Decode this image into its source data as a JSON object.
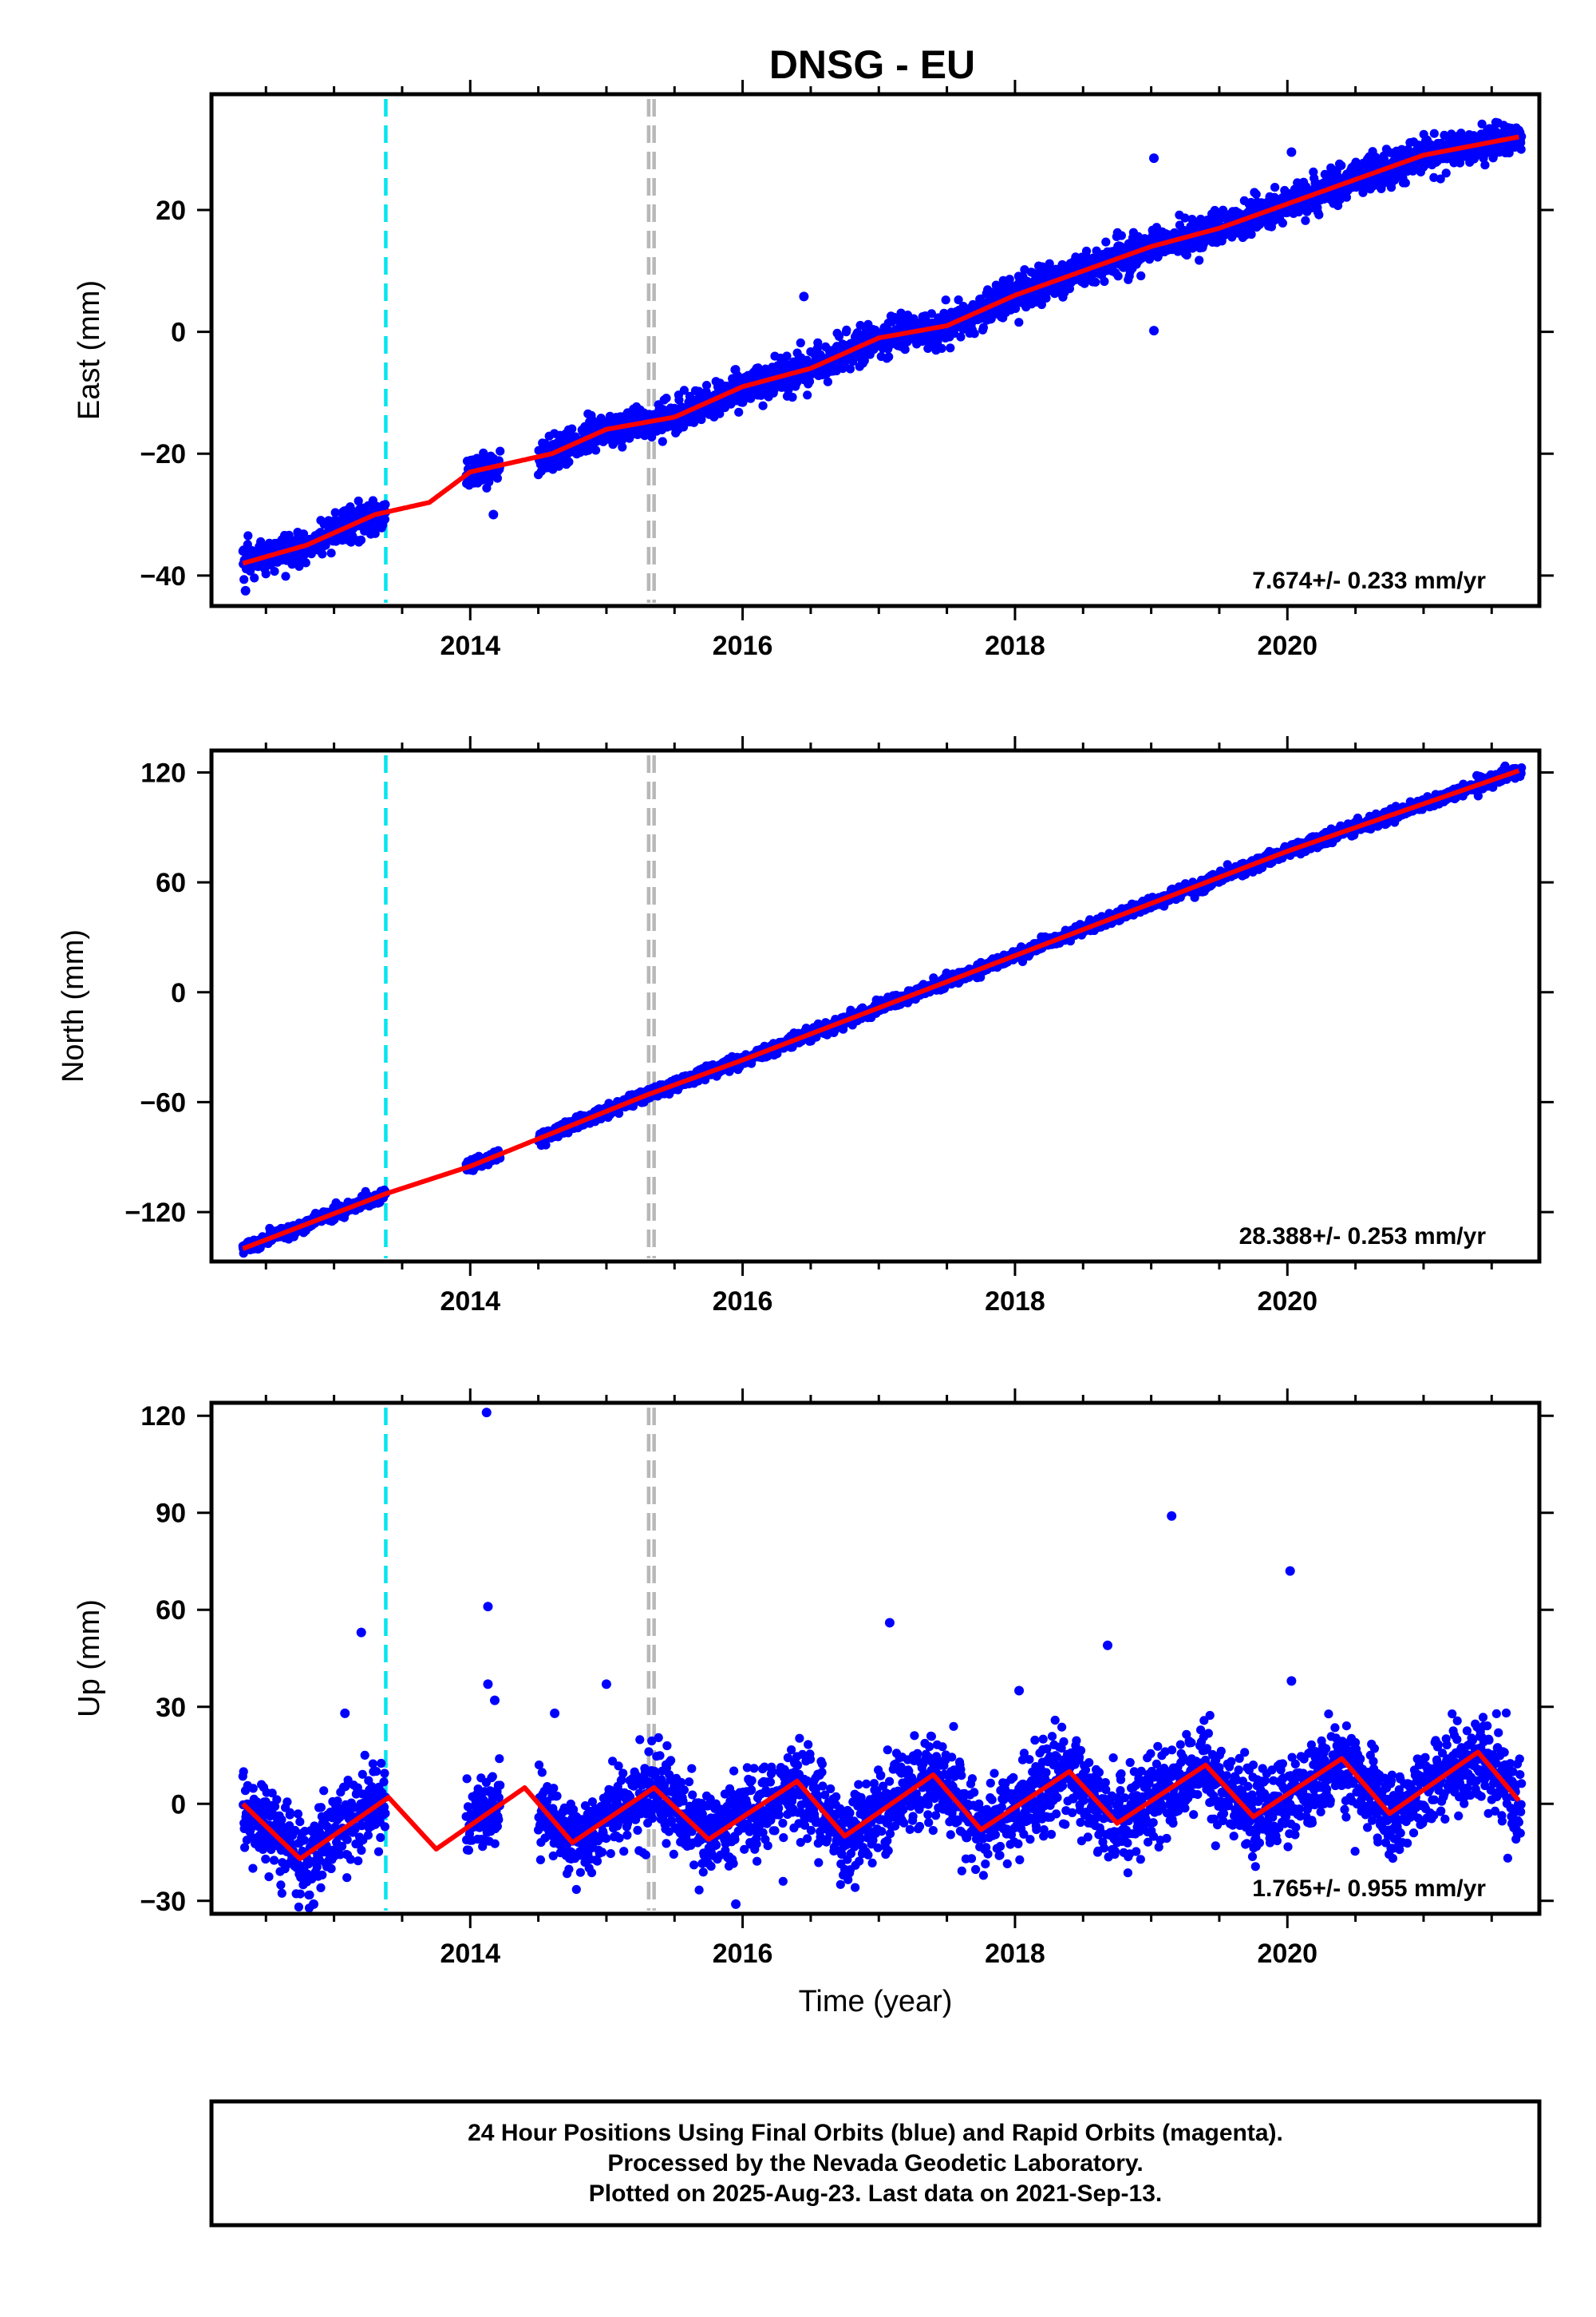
{
  "title": "DNSG - EU",
  "colors": {
    "points": "#0000ff",
    "fit": "#ff0000",
    "antenna_change": "#00e5ee",
    "other_event": "#b8b8b8",
    "frame": "#000000"
  },
  "chart_data": [
    {
      "type": "scatter",
      "component": "east",
      "ylabel": "East (mm)",
      "xlabel": "",
      "xlim": [
        2012.1,
        2021.85
      ],
      "ylim": [
        -45,
        39
      ],
      "xticks": [
        2014,
        2016,
        2018,
        2020
      ],
      "yticks": [
        -40,
        -20,
        0,
        20
      ],
      "rate_label": "7.674+/- 0.233 mm/yr",
      "event_lines": [
        {
          "x": 2013.38,
          "kind": "antenna_change"
        },
        {
          "x": 2015.31,
          "kind": "other_event"
        },
        {
          "x": 2015.35,
          "kind": "other_event"
        }
      ],
      "data_segments": [
        [
          2012.33,
          2013.38
        ],
        [
          2013.97,
          2014.22
        ],
        [
          2014.5,
          2021.72
        ]
      ],
      "trend": {
        "rate": 7.674,
        "value_at_2012_33": -38.0
      },
      "seasonal": {
        "amplitude": 1.0,
        "phase_peak": 0.3
      },
      "scatter_spread": 1.4,
      "fit": {
        "x": [
          2012.33,
          2012.8,
          2013.3,
          2013.7,
          2014.0,
          2014.6,
          2015.0,
          2015.5,
          2016.0,
          2016.5,
          2017.0,
          2017.5,
          2018.0,
          2018.5,
          2019.0,
          2019.5,
          2020.0,
          2020.5,
          2021.0,
          2021.7
        ],
        "y": [
          -38,
          -35,
          -30,
          -28,
          -23,
          -20,
          -16,
          -14,
          -9,
          -6,
          -1,
          1,
          6,
          10,
          14,
          17,
          21,
          25,
          29,
          32
        ]
      },
      "outliers": [
        {
          "x": 2019.02,
          "y": 28.5
        },
        {
          "x": 2019.02,
          "y": 0.2
        },
        {
          "x": 2020.03,
          "y": 29.5
        },
        {
          "x": 2016.45,
          "y": 5.8
        },
        {
          "x": 2014.17,
          "y": -30
        },
        {
          "x": 2012.35,
          "y": -42.5
        }
      ]
    },
    {
      "type": "scatter",
      "component": "north",
      "ylabel": "North (mm)",
      "xlabel": "",
      "xlim": [
        2012.1,
        2021.85
      ],
      "ylim": [
        -147,
        132
      ],
      "xticks": [
        2014,
        2016,
        2018,
        2020
      ],
      "yticks": [
        -120,
        -60,
        0,
        60,
        120
      ],
      "rate_label": "28.388+/- 0.253 mm/yr",
      "event_lines": [
        {
          "x": 2013.38,
          "kind": "antenna_change"
        },
        {
          "x": 2015.31,
          "kind": "other_event"
        },
        {
          "x": 2015.35,
          "kind": "other_event"
        }
      ],
      "data_segments": [
        [
          2012.33,
          2013.38
        ],
        [
          2013.97,
          2014.22
        ],
        [
          2014.5,
          2021.72
        ]
      ],
      "trend": {
        "rate": 28.388,
        "value_at_2012_33": -140.0
      },
      "seasonal": {
        "amplitude": 1.5,
        "phase_peak": 0.3
      },
      "scatter_spread": 1.6,
      "fit": {
        "x": [
          2012.33,
          2013.38,
          2014.0,
          2015.3,
          2016.0,
          2018.0,
          2020.0,
          2021.7
        ],
        "y": [
          -140,
          -110,
          -95,
          -56,
          -37,
          20,
          77,
          121
        ]
      },
      "outliers": []
    },
    {
      "type": "scatter",
      "component": "up",
      "ylabel": "Up (mm)",
      "xlabel": "Time (year)",
      "xlim": [
        2012.1,
        2021.85
      ],
      "ylim": [
        -34,
        124
      ],
      "xticks": [
        2014,
        2016,
        2018,
        2020
      ],
      "yticks": [
        -30,
        0,
        30,
        60,
        90,
        120
      ],
      "rate_label": "1.765+/- 0.955 mm/yr",
      "event_lines": [
        {
          "x": 2013.38,
          "kind": "antenna_change"
        },
        {
          "x": 2015.31,
          "kind": "other_event"
        },
        {
          "x": 2015.35,
          "kind": "other_event"
        }
      ],
      "data_segments": [
        [
          2012.33,
          2013.38
        ],
        [
          2013.97,
          2014.22
        ],
        [
          2014.5,
          2021.72
        ]
      ],
      "trend": {
        "rate": 1.765,
        "value_at_2012_33": -2.0
      },
      "seasonal": {
        "amplitude": 9.0,
        "phase_peak": 0.38
      },
      "scatter_spread": 6.5,
      "fit": {
        "x": [
          2012.33,
          2012.75,
          2013.4,
          2013.75,
          2014.4,
          2014.75,
          2015.35,
          2015.75,
          2016.4,
          2016.75,
          2017.4,
          2017.75,
          2018.4,
          2018.75,
          2019.4,
          2019.75,
          2020.4,
          2020.75,
          2021.4,
          2021.7
        ],
        "y": [
          0,
          -17,
          2,
          -14,
          5,
          -12,
          5,
          -11,
          7,
          -10,
          9,
          -8,
          10,
          -6,
          12,
          -4,
          14,
          -3,
          16,
          1
        ]
      },
      "outliers": [
        {
          "x": 2014.12,
          "y": 121
        },
        {
          "x": 2014.13,
          "y": 61
        },
        {
          "x": 2014.13,
          "y": 37
        },
        {
          "x": 2014.18,
          "y": 32
        },
        {
          "x": 2013.2,
          "y": 53
        },
        {
          "x": 2013.08,
          "y": 28
        },
        {
          "x": 2014.62,
          "y": 28
        },
        {
          "x": 2015.0,
          "y": 37
        },
        {
          "x": 2017.08,
          "y": 56
        },
        {
          "x": 2018.03,
          "y": 35
        },
        {
          "x": 2018.68,
          "y": 49
        },
        {
          "x": 2019.15,
          "y": 89
        },
        {
          "x": 2020.02,
          "y": 72
        },
        {
          "x": 2020.03,
          "y": 38
        },
        {
          "x": 2012.85,
          "y": -31
        },
        {
          "x": 2015.95,
          "y": -31
        }
      ]
    }
  ],
  "footer": {
    "line1": "24 Hour Positions Using Final Orbits (blue) and Rapid Orbits (magenta).",
    "line2": "Processed by the Nevada Geodetic Laboratory.",
    "line3": "Plotted on 2025-Aug-23. Last data on 2021-Sep-13."
  }
}
